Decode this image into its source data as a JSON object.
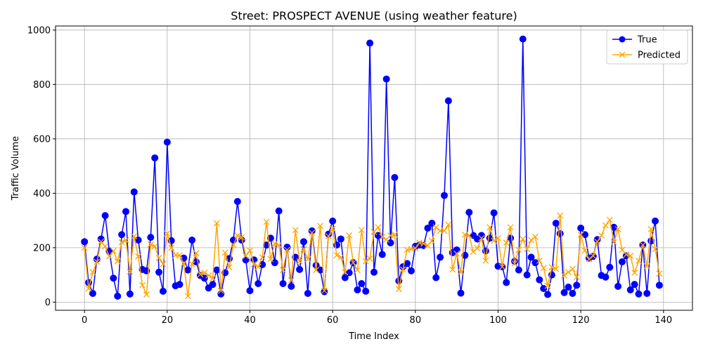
{
  "chart_data": {
    "type": "line",
    "title": "Street: PROSPECT AVENUE (using weather feature)",
    "xlabel": "Time Index",
    "ylabel": "Traffic Volume",
    "xlim": [
      -7,
      147
    ],
    "ylim": [
      -30,
      1015
    ],
    "xticks": [
      0,
      20,
      40,
      60,
      80,
      100,
      120,
      140
    ],
    "yticks": [
      0,
      200,
      400,
      600,
      800,
      1000
    ],
    "grid": true,
    "legend_position": "top-right",
    "series": [
      {
        "name": "True",
        "color": "#0000ff",
        "marker": "circle",
        "x_start": 0,
        "values": [
          222,
          72,
          32,
          158,
          232,
          318,
          188,
          88,
          22,
          248,
          333,
          30,
          405,
          228,
          120,
          115,
          238,
          530,
          110,
          40,
          588,
          226,
          60,
          65,
          162,
          118,
          228,
          148,
          98,
          88,
          52,
          65,
          118,
          30,
          108,
          160,
          228,
          370,
          228,
          155,
          42,
          155,
          68,
          138,
          210,
          235,
          145,
          335,
          68,
          202,
          58,
          165,
          120,
          222,
          32,
          262,
          135,
          118,
          38,
          250,
          298,
          210,
          232,
          90,
          108,
          145,
          45,
          68,
          40,
          952,
          110,
          245,
          175,
          820,
          218,
          458,
          78,
          130,
          142,
          115,
          205,
          210,
          208,
          272,
          290,
          90,
          165,
          392,
          740,
          182,
          192,
          33,
          172,
          330,
          245,
          232,
          245,
          188,
          235,
          328,
          132,
          130,
          72,
          235,
          150,
          118,
          967,
          100,
          165,
          145,
          82,
          50,
          28,
          100,
          290,
          252,
          35,
          55,
          32,
          62,
          272,
          248,
          162,
          168,
          230,
          98,
          92,
          128,
          275,
          58,
          148,
          170,
          45,
          65,
          30,
          210,
          32,
          225,
          298,
          62
        ]
      },
      {
        "name": "Predicted",
        "color": "#ffa500",
        "marker": "x",
        "x_start": 0,
        "values": [
          200,
          50,
          110,
          148,
          222,
          205,
          168,
          188,
          150,
          220,
          228,
          112,
          242,
          168,
          62,
          28,
          212,
          205,
          162,
          140,
          252,
          200,
          172,
          172,
          142,
          22,
          140,
          180,
          102,
          108,
          98,
          88,
          290,
          42,
          182,
          128,
          210,
          245,
          238,
          170,
          190,
          140,
          130,
          165,
          295,
          158,
          215,
          210,
          118,
          192,
          80,
          265,
          150,
          195,
          158,
          255,
          118,
          280,
          42,
          242,
          270,
          172,
          165,
          110,
          245,
          145,
          118,
          265,
          150,
          160,
          258,
          275,
          240,
          230,
          245,
          248,
          48,
          120,
          192,
          195,
          198,
          218,
          215,
          208,
          225,
          275,
          262,
          262,
          285,
          120,
          178,
          110,
          248,
          245,
          185,
          198,
          235,
          152,
          275,
          225,
          235,
          130,
          218,
          275,
          142,
          192,
          232,
          195,
          228,
          240,
          152,
          125,
          60,
          128,
          122,
          318,
          98,
          110,
          122,
          92,
          248,
          190,
          158,
          170,
          222,
          245,
          282,
          302,
          220,
          268,
          192,
          175,
          170,
          108,
          152,
          210,
          132,
          268,
          195,
          105
        ]
      }
    ]
  },
  "legend": {
    "entries": [
      "True",
      "Predicted"
    ]
  }
}
